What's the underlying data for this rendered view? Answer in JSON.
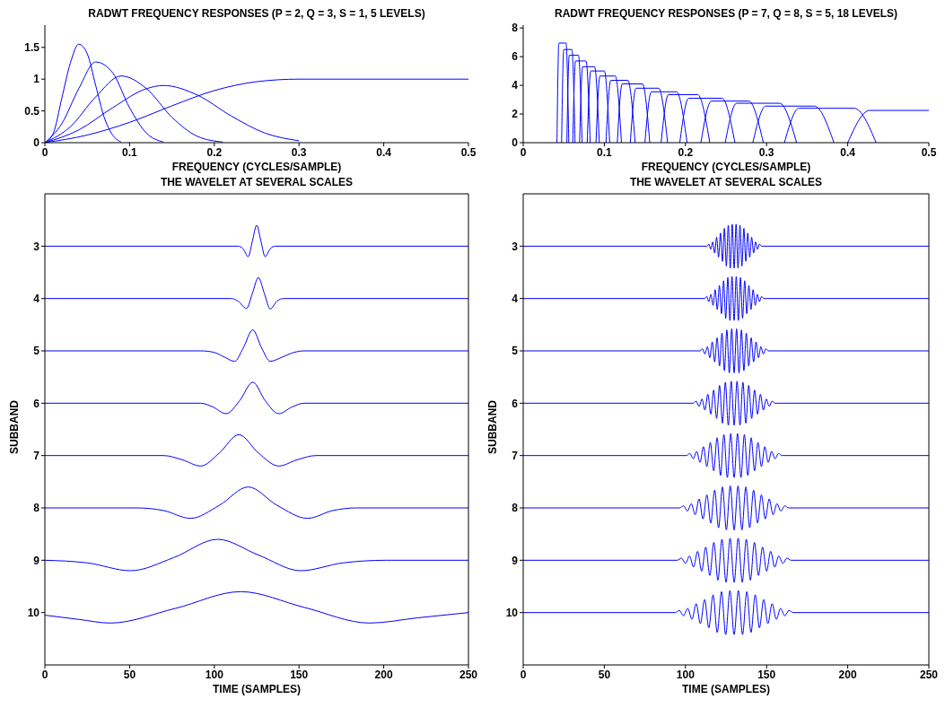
{
  "chart_data": [
    {
      "type": "line",
      "title": "RADWT FREQUENCY RESPONSES (P = 2, Q = 3, S = 1, 5 LEVELS)",
      "xlabel": "FREQUENCY (CYCLES/SAMPLE)",
      "xlim": [
        0,
        0.5
      ],
      "xticks": [
        0,
        0.1,
        0.2,
        0.3,
        0.4,
        0.5
      ],
      "ylim": [
        0,
        1.85
      ],
      "yticks": [
        0,
        0.5,
        1,
        1.5
      ],
      "series": [
        {
          "color": "#0000ff",
          "x": [
            0,
            0.01,
            0.02,
            0.03,
            0.04,
            0.05,
            0.06,
            0.07,
            0.08,
            0.09
          ],
          "values": [
            0,
            0.15,
            0.7,
            1.25,
            1.55,
            1.4,
            0.9,
            0.4,
            0.12,
            0.01
          ]
        },
        {
          "color": "#0000ff",
          "x": [
            0,
            0.02,
            0.04,
            0.06,
            0.08,
            0.1,
            0.12,
            0.14
          ],
          "values": [
            0,
            0.3,
            0.85,
            1.27,
            1.1,
            0.55,
            0.15,
            0.01
          ]
        },
        {
          "color": "#0000ff",
          "x": [
            0,
            0.03,
            0.06,
            0.09,
            0.12,
            0.15,
            0.18,
            0.21
          ],
          "values": [
            0,
            0.25,
            0.72,
            1.05,
            0.85,
            0.4,
            0.1,
            0.01
          ]
        },
        {
          "color": "#0000ff",
          "x": [
            0,
            0.04,
            0.08,
            0.12,
            0.14,
            0.18,
            0.22,
            0.26,
            0.3
          ],
          "values": [
            0,
            0.2,
            0.55,
            0.85,
            0.9,
            0.75,
            0.42,
            0.15,
            0.03
          ]
        },
        {
          "color": "#0000ff",
          "x": [
            0,
            0.05,
            0.1,
            0.15,
            0.2,
            0.25,
            0.3,
            0.5
          ],
          "values": [
            0,
            0.12,
            0.32,
            0.58,
            0.82,
            0.96,
            1,
            1
          ]
        }
      ]
    },
    {
      "type": "line",
      "title": "RADWT FREQUENCY RESPONSES (P = 7, Q = 8, S = 5, 18 LEVELS)",
      "xlabel": "FREQUENCY (CYCLES/SAMPLE)",
      "xlim": [
        0,
        0.5
      ],
      "xticks": [
        0,
        0.1,
        0.2,
        0.3,
        0.4,
        0.5
      ],
      "ylim": [
        0,
        8.2
      ],
      "yticks": [
        0,
        2,
        4,
        6,
        8
      ],
      "series": [
        {
          "color": "#0000ff",
          "x": [
            0.0416,
            0.044,
            0.0528,
            0.0562
          ],
          "values": [
            0,
            6.95,
            6.95,
            0
          ]
        },
        {
          "color": "#0000ff",
          "x": [
            0.0473,
            0.05,
            0.06,
            0.0639
          ],
          "values": [
            0,
            6.5,
            6.5,
            0
          ]
        },
        {
          "color": "#0000ff",
          "x": [
            0.0538,
            0.0568,
            0.0681,
            0.0726
          ],
          "values": [
            0,
            6.1,
            6.1,
            0
          ]
        },
        {
          "color": "#0000ff",
          "x": [
            0.0611,
            0.0645,
            0.0774,
            0.0826
          ],
          "values": [
            0,
            5.7,
            5.7,
            0
          ]
        },
        {
          "color": "#0000ff",
          "x": [
            0.0695,
            0.0733,
            0.088,
            0.0938
          ],
          "values": [
            0,
            5.3,
            5.3,
            0
          ]
        },
        {
          "color": "#0000ff",
          "x": [
            0.0789,
            0.0833,
            0.1,
            0.1066
          ],
          "values": [
            0,
            5,
            5,
            0
          ]
        },
        {
          "color": "#0000ff",
          "x": [
            0.0897,
            0.0947,
            0.1136,
            0.1211
          ],
          "values": [
            0,
            4.65,
            4.65,
            0
          ]
        },
        {
          "color": "#0000ff",
          "x": [
            0.102,
            0.108,
            0.129,
            0.138
          ],
          "values": [
            0,
            4.35,
            4.35,
            0
          ]
        },
        {
          "color": "#0000ff",
          "x": [
            0.116,
            0.122,
            0.147,
            0.156
          ],
          "values": [
            0,
            4.1,
            4.1,
            0
          ]
        },
        {
          "color": "#0000ff",
          "x": [
            0.132,
            0.139,
            0.167,
            0.178
          ],
          "values": [
            0,
            3.8,
            3.8,
            0
          ]
        },
        {
          "color": "#0000ff",
          "x": [
            0.15,
            0.158,
            0.189,
            0.202
          ],
          "values": [
            0,
            3.55,
            3.55,
            0
          ]
        },
        {
          "color": "#0000ff",
          "x": [
            0.17,
            0.179,
            0.215,
            0.23
          ],
          "values": [
            0,
            3.35,
            3.35,
            0
          ]
        },
        {
          "color": "#0000ff",
          "x": [
            0.193,
            0.204,
            0.245,
            0.261
          ],
          "values": [
            0,
            3.1,
            3.1,
            0
          ]
        },
        {
          "color": "#0000ff",
          "x": [
            0.219,
            0.232,
            0.278,
            0.296
          ],
          "values": [
            0,
            2.9,
            2.9,
            0
          ]
        },
        {
          "color": "#0000ff",
          "x": [
            0.249,
            0.263,
            0.316,
            0.337
          ],
          "values": [
            0,
            2.75,
            2.75,
            0
          ]
        },
        {
          "color": "#0000ff",
          "x": [
            0.283,
            0.299,
            0.359,
            0.383
          ],
          "values": [
            0,
            2.55,
            2.55,
            0
          ]
        },
        {
          "color": "#0000ff",
          "x": [
            0.322,
            0.34,
            0.408,
            0.435
          ],
          "values": [
            0,
            2.4,
            2.4,
            0
          ]
        },
        {
          "color": "#0000ff",
          "x": [
            0.4,
            0.427,
            0.5
          ],
          "values": [
            0,
            2.25,
            2.25
          ]
        }
      ]
    },
    {
      "type": "line",
      "title": "THE WAVELET AT SEVERAL SCALES",
      "xlabel": "TIME (SAMPLES)",
      "ylabel": "SUBBAND",
      "xlim": [
        0,
        250
      ],
      "xticks": [
        0,
        50,
        100,
        150,
        200,
        250
      ],
      "ylim": [
        11,
        2
      ],
      "yticks": [
        3,
        4,
        5,
        6,
        7,
        8,
        9,
        10
      ],
      "series": [
        {
          "color": "#0000ff",
          "x": [
            0,
            114,
            117,
            120,
            122.5,
            125,
            127.5,
            130,
            133,
            136,
            250
          ],
          "values": [
            3,
            3,
            3.05,
            3.2,
            2.9,
            2.6,
            2.9,
            3.2,
            3.05,
            3,
            3
          ]
        },
        {
          "color": "#0000ff",
          "x": [
            0,
            110,
            114,
            119,
            122.5,
            126,
            129.5,
            133,
            137,
            141,
            250
          ],
          "values": [
            4,
            4,
            4.05,
            4.19,
            3.9,
            3.6,
            3.9,
            4.2,
            4.05,
            4,
            4
          ]
        },
        {
          "color": "#0000ff",
          "x": [
            0,
            92,
            100,
            106,
            112,
            117,
            122.7,
            128,
            133,
            140,
            147,
            153,
            250
          ],
          "values": [
            5,
            5,
            5.03,
            5.12,
            5.2,
            4.95,
            4.6,
            4.95,
            5.2,
            5.12,
            5.03,
            5,
            5
          ]
        },
        {
          "color": "#0000ff",
          "x": [
            0,
            92,
            99,
            107,
            115,
            122.7,
            130,
            138,
            146,
            153,
            250
          ],
          "values": [
            6,
            6,
            6.07,
            6.2,
            5.95,
            5.6,
            5.95,
            6.2,
            6.07,
            6,
            6
          ]
        },
        {
          "color": "#0000ff",
          "x": [
            0,
            70,
            81,
            92,
            103,
            114.5,
            126,
            138,
            149,
            160,
            250
          ],
          "values": [
            7,
            7,
            7.08,
            7.2,
            6.95,
            6.6,
            6.95,
            7.2,
            7.08,
            7,
            7
          ]
        },
        {
          "color": "#0000ff",
          "x": [
            0,
            54,
            70,
            86,
            103,
            120,
            137,
            155,
            170,
            184,
            250
          ],
          "values": [
            8,
            8,
            8.05,
            8.2,
            7.95,
            7.6,
            7.95,
            8.2,
            8.05,
            8,
            8
          ]
        },
        {
          "color": "#0000ff",
          "x": [
            0,
            25,
            50.7,
            76,
            102,
            126,
            151,
            176,
            201.5,
            250
          ],
          "values": [
            9,
            9.05,
            9.2,
            8.95,
            8.6,
            8.9,
            9.2,
            9.05,
            9,
            9
          ]
        },
        {
          "color": "#0000ff",
          "x": [
            0,
            20,
            38.5,
            77,
            115.6,
            153,
            191.6,
            220,
            250
          ],
          "values": [
            10.05,
            10.13,
            10.2,
            9.92,
            9.6,
            9.9,
            10.2,
            10.1,
            10
          ]
        }
      ]
    },
    {
      "type": "line",
      "title": "THE WAVELET AT SEVERAL SCALES",
      "xlabel": "TIME (SAMPLES)",
      "ylabel": "SUBBAND",
      "xlim": [
        0,
        250
      ],
      "xticks": [
        0,
        50,
        100,
        150,
        200,
        250
      ],
      "ylim": [
        11,
        2
      ],
      "yticks": [
        3,
        4,
        5,
        6,
        7,
        8,
        9,
        10
      ],
      "series": [
        {
          "color": "#0000ff",
          "x": [
            0,
            113.2,
            114.4,
            115.6,
            116.8,
            118,
            119.2,
            120.4,
            121.6,
            122.8,
            124,
            125.2,
            126.4,
            127.6,
            128.8,
            130,
            131.2,
            132.4,
            133.6,
            134.8,
            136,
            137.2,
            138.4,
            139.6,
            140.8,
            142,
            143.2,
            144.4,
            145.6,
            146.8,
            250
          ],
          "values": [
            3,
            3,
            2.96,
            3.06,
            2.92,
            3.13,
            2.83,
            3.21,
            2.75,
            3.29,
            2.66,
            3.38,
            2.6,
            3.42,
            2.58,
            3.42,
            2.58,
            3.42,
            2.6,
            3.38,
            2.66,
            3.29,
            2.75,
            3.21,
            2.83,
            3.13,
            2.92,
            3.06,
            2.96,
            3,
            3
          ]
        },
        {
          "color": "#0000ff",
          "x": [
            0,
            111.8,
            113.1,
            114.4,
            115.7,
            117,
            118.3,
            119.6,
            120.9,
            122.2,
            123.5,
            124.8,
            126.1,
            127.4,
            128.7,
            130,
            131.3,
            132.6,
            133.9,
            135.2,
            136.5,
            137.8,
            139.1,
            140.4,
            141.7,
            143,
            144.3,
            145.6,
            146.9,
            148.2,
            250
          ],
          "values": [
            4,
            4,
            3.96,
            4.06,
            3.92,
            4.13,
            3.83,
            4.21,
            3.75,
            4.29,
            3.66,
            4.38,
            3.6,
            4.42,
            3.58,
            4.42,
            3.58,
            4.42,
            3.6,
            4.38,
            3.66,
            4.29,
            3.75,
            4.21,
            3.83,
            4.13,
            3.92,
            4.06,
            3.96,
            4,
            4
          ]
        },
        {
          "color": "#0000ff",
          "x": [
            0,
            109,
            110.5,
            112,
            113.5,
            115,
            116.5,
            118,
            119.5,
            121,
            122.5,
            124,
            125.5,
            127,
            128.5,
            130,
            131.5,
            133,
            134.5,
            136,
            137.5,
            139,
            140.5,
            142,
            143.5,
            145,
            146.5,
            148,
            149.5,
            151,
            250
          ],
          "values": [
            5,
            5,
            4.96,
            5.06,
            4.92,
            5.13,
            4.83,
            5.21,
            4.75,
            5.29,
            4.66,
            5.38,
            4.6,
            5.42,
            4.58,
            5.42,
            4.58,
            5.42,
            4.6,
            5.38,
            4.66,
            5.29,
            4.75,
            5.21,
            4.83,
            5.13,
            4.92,
            5.06,
            4.96,
            5,
            5
          ]
        },
        {
          "color": "#0000ff",
          "x": [
            0,
            104.8,
            106.6,
            108.4,
            110.2,
            112,
            113.8,
            115.6,
            117.4,
            119.2,
            121,
            122.8,
            124.6,
            126.4,
            128.2,
            130,
            131.8,
            133.6,
            135.4,
            137.2,
            139,
            140.8,
            142.6,
            144.4,
            146.2,
            148,
            149.8,
            151.6,
            153.4,
            155.2,
            250
          ],
          "values": [
            6,
            6,
            5.96,
            6.06,
            5.92,
            6.13,
            5.83,
            6.21,
            5.75,
            6.29,
            5.66,
            6.38,
            5.6,
            6.42,
            5.58,
            6.42,
            5.58,
            6.42,
            5.6,
            6.38,
            5.66,
            6.29,
            5.75,
            6.21,
            5.83,
            6.13,
            5.92,
            6.06,
            5.96,
            6,
            6
          ]
        },
        {
          "color": "#0000ff",
          "x": [
            0,
            100.6,
            102.7,
            104.8,
            106.9,
            109,
            111.1,
            113.2,
            115.3,
            117.4,
            119.5,
            121.6,
            123.7,
            125.8,
            127.9,
            130,
            132.1,
            134.2,
            136.3,
            138.4,
            140.5,
            142.6,
            144.7,
            146.8,
            148.9,
            151,
            153.1,
            155.2,
            157.3,
            159.4,
            250
          ],
          "values": [
            7,
            7,
            6.96,
            7.06,
            6.92,
            7.13,
            6.83,
            7.21,
            6.75,
            7.29,
            6.66,
            7.38,
            6.6,
            7.42,
            6.58,
            7.42,
            6.58,
            7.42,
            6.6,
            7.38,
            6.66,
            7.29,
            6.75,
            7.21,
            6.83,
            7.13,
            6.92,
            7.06,
            6.96,
            7,
            7
          ]
        },
        {
          "color": "#0000ff",
          "x": [
            0,
            96.4,
            98.8,
            101.2,
            103.6,
            106,
            108.4,
            110.8,
            113.2,
            115.6,
            118,
            120.4,
            122.8,
            125.2,
            127.6,
            130,
            132.4,
            134.8,
            137.2,
            139.6,
            142,
            144.4,
            146.8,
            149.2,
            151.6,
            154,
            156.4,
            158.8,
            161.2,
            163.6,
            250
          ],
          "values": [
            8,
            8,
            7.96,
            8.06,
            7.92,
            8.13,
            7.83,
            8.21,
            7.75,
            8.29,
            7.66,
            8.38,
            7.6,
            8.42,
            7.58,
            8.42,
            7.58,
            8.42,
            7.6,
            8.38,
            7.66,
            8.29,
            7.75,
            8.21,
            7.83,
            8.13,
            7.92,
            8.06,
            7.96,
            8,
            8
          ]
        },
        {
          "color": "#0000ff",
          "x": [
            0,
            95,
            97.5,
            100,
            102.5,
            105,
            107.5,
            110,
            112.5,
            115,
            117.5,
            120,
            122.5,
            125,
            127.5,
            130,
            132.5,
            135,
            137.5,
            140,
            142.5,
            145,
            147.5,
            150,
            152.5,
            155,
            157.5,
            160,
            162.5,
            165,
            250
          ],
          "values": [
            9,
            9,
            8.96,
            9.06,
            8.92,
            9.13,
            8.83,
            9.21,
            8.75,
            9.29,
            8.66,
            9.38,
            8.6,
            9.42,
            8.58,
            9.42,
            8.58,
            9.42,
            8.6,
            9.38,
            8.66,
            9.29,
            8.75,
            9.21,
            8.83,
            9.13,
            8.92,
            9.06,
            8.96,
            9,
            9
          ]
        },
        {
          "color": "#0000ff",
          "x": [
            0,
            93.6,
            96.2,
            98.8,
            101.4,
            104,
            106.6,
            109.2,
            111.8,
            114.4,
            117,
            119.6,
            122.2,
            124.8,
            127.4,
            130,
            132.6,
            135.2,
            137.8,
            140.4,
            143,
            145.6,
            148.2,
            150.8,
            153.4,
            156,
            158.6,
            161.2,
            163.8,
            166.4,
            250
          ],
          "values": [
            10,
            10,
            9.96,
            10.06,
            9.92,
            10.13,
            9.83,
            10.21,
            9.75,
            10.29,
            9.66,
            10.38,
            9.6,
            10.42,
            9.58,
            10.42,
            9.58,
            10.42,
            9.6,
            10.38,
            9.66,
            10.29,
            9.75,
            10.21,
            9.83,
            10.13,
            9.92,
            10.06,
            9.96,
            10,
            10
          ]
        }
      ]
    }
  ]
}
